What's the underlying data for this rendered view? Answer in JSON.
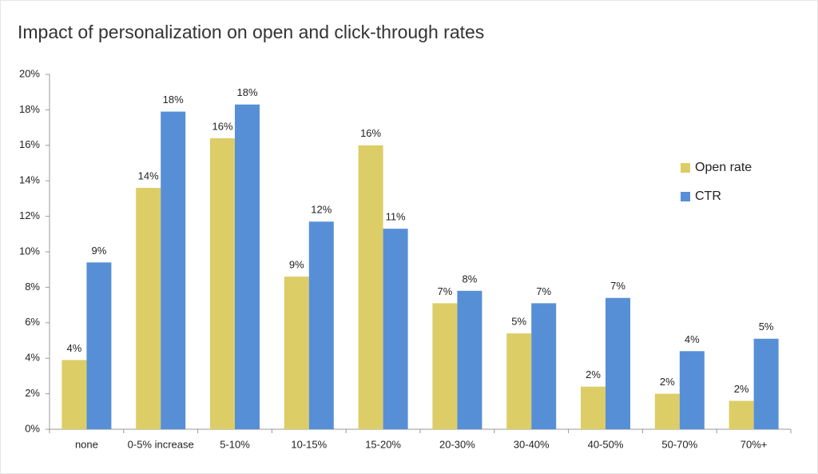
{
  "chart_data": {
    "type": "bar",
    "title": "Impact of personalization on open and click-through rates",
    "categories": [
      "none",
      "0-5% increase",
      "5-10%",
      "10-15%",
      "15-20%",
      "20-30%",
      "30-40%",
      "40-50%",
      "50-70%",
      "70%+"
    ],
    "series": [
      {
        "name": "Open rate",
        "color": "#dccd66",
        "values": [
          3.9,
          13.6,
          16.4,
          8.6,
          16.0,
          7.1,
          5.4,
          2.4,
          2.0,
          1.6
        ],
        "value_labels": [
          "4%",
          "14%",
          "16%",
          "9%",
          "16%",
          "7%",
          "5%",
          "2%",
          "2%",
          "2%"
        ]
      },
      {
        "name": "CTR",
        "color": "#578fd7",
        "values": [
          9.4,
          17.9,
          18.3,
          11.7,
          11.3,
          7.8,
          7.1,
          7.4,
          4.4,
          5.1
        ],
        "value_labels": [
          "9%",
          "18%",
          "18%",
          "12%",
          "11%",
          "8%",
          "7%",
          "7%",
          "4%",
          "5%"
        ]
      }
    ],
    "ylim": [
      0,
      20
    ],
    "yticks": [
      {
        "value": 0,
        "label": "0%"
      },
      {
        "value": 2,
        "label": "2%"
      },
      {
        "value": 4,
        "label": "4%"
      },
      {
        "value": 6,
        "label": "6%"
      },
      {
        "value": 8,
        "label": "8%"
      },
      {
        "value": 10,
        "label": "10%"
      },
      {
        "value": 12,
        "label": "12%"
      },
      {
        "value": 14,
        "label": "14%"
      },
      {
        "value": 16,
        "label": "16%"
      },
      {
        "value": 18,
        "label": "18%"
      },
      {
        "value": 20,
        "label": "20%"
      }
    ],
    "grid": false,
    "legend": "right"
  }
}
